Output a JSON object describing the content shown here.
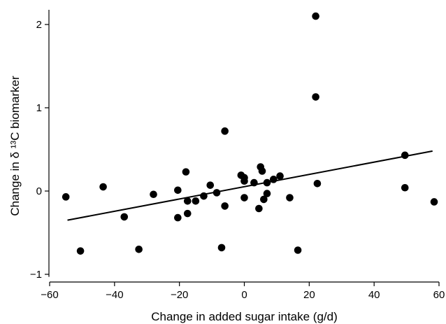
{
  "chart_data": {
    "type": "scatter",
    "title": "",
    "xlabel": "Change in added sugar intake (g/d)",
    "ylabel": "Change in δ ¹³C biomarker",
    "xlim": [
      -62,
      62
    ],
    "ylim": [
      -1.1,
      2.2
    ],
    "x_ticks": [
      -60,
      -40,
      -20,
      0,
      20,
      40,
      60
    ],
    "x_tick_labels": [
      "−60",
      "−40",
      "−20",
      "0",
      "20",
      "40",
      "60"
    ],
    "y_ticks": [
      -1,
      0,
      1,
      2
    ],
    "y_tick_labels": [
      "−1",
      "0",
      "1",
      "2"
    ],
    "grid": false,
    "colors": {
      "points": "#000000",
      "fit_line": "#000000"
    },
    "points": [
      {
        "x": -55,
        "y": -0.07
      },
      {
        "x": -50.5,
        "y": -0.72
      },
      {
        "x": -43.5,
        "y": 0.05
      },
      {
        "x": -37,
        "y": -0.31
      },
      {
        "x": -32.5,
        "y": -0.7
      },
      {
        "x": -28,
        "y": -0.04
      },
      {
        "x": -20.5,
        "y": 0.01
      },
      {
        "x": -20.5,
        "y": -0.32
      },
      {
        "x": -18,
        "y": 0.23
      },
      {
        "x": -17.5,
        "y": -0.12
      },
      {
        "x": -17.5,
        "y": -0.27
      },
      {
        "x": -15,
        "y": -0.12
      },
      {
        "x": -12.5,
        "y": -0.06
      },
      {
        "x": -10.5,
        "y": 0.07
      },
      {
        "x": -8.5,
        "y": -0.02
      },
      {
        "x": -7,
        "y": -0.68
      },
      {
        "x": -6,
        "y": 0.72
      },
      {
        "x": -6,
        "y": -0.18
      },
      {
        "x": -1,
        "y": 0.19
      },
      {
        "x": 0,
        "y": 0.16
      },
      {
        "x": 0,
        "y": 0.12
      },
      {
        "x": 0,
        "y": -0.08
      },
      {
        "x": 3,
        "y": 0.1
      },
      {
        "x": 4.5,
        "y": -0.21
      },
      {
        "x": 5,
        "y": 0.29
      },
      {
        "x": 5.5,
        "y": 0.24
      },
      {
        "x": 6,
        "y": -0.1
      },
      {
        "x": 7,
        "y": -0.03
      },
      {
        "x": 7,
        "y": 0.1
      },
      {
        "x": 9,
        "y": 0.14
      },
      {
        "x": 11,
        "y": 0.18
      },
      {
        "x": 14,
        "y": -0.08
      },
      {
        "x": 16.5,
        "y": -0.71
      },
      {
        "x": 22,
        "y": 2.1
      },
      {
        "x": 22,
        "y": 1.13
      },
      {
        "x": 22.5,
        "y": 0.09
      },
      {
        "x": 49.5,
        "y": 0.43
      },
      {
        "x": 49.5,
        "y": 0.04
      },
      {
        "x": 58.5,
        "y": -0.13
      }
    ],
    "fit_line": {
      "x": [
        -54.5,
        58
      ],
      "y": [
        -0.35,
        0.48
      ]
    }
  }
}
